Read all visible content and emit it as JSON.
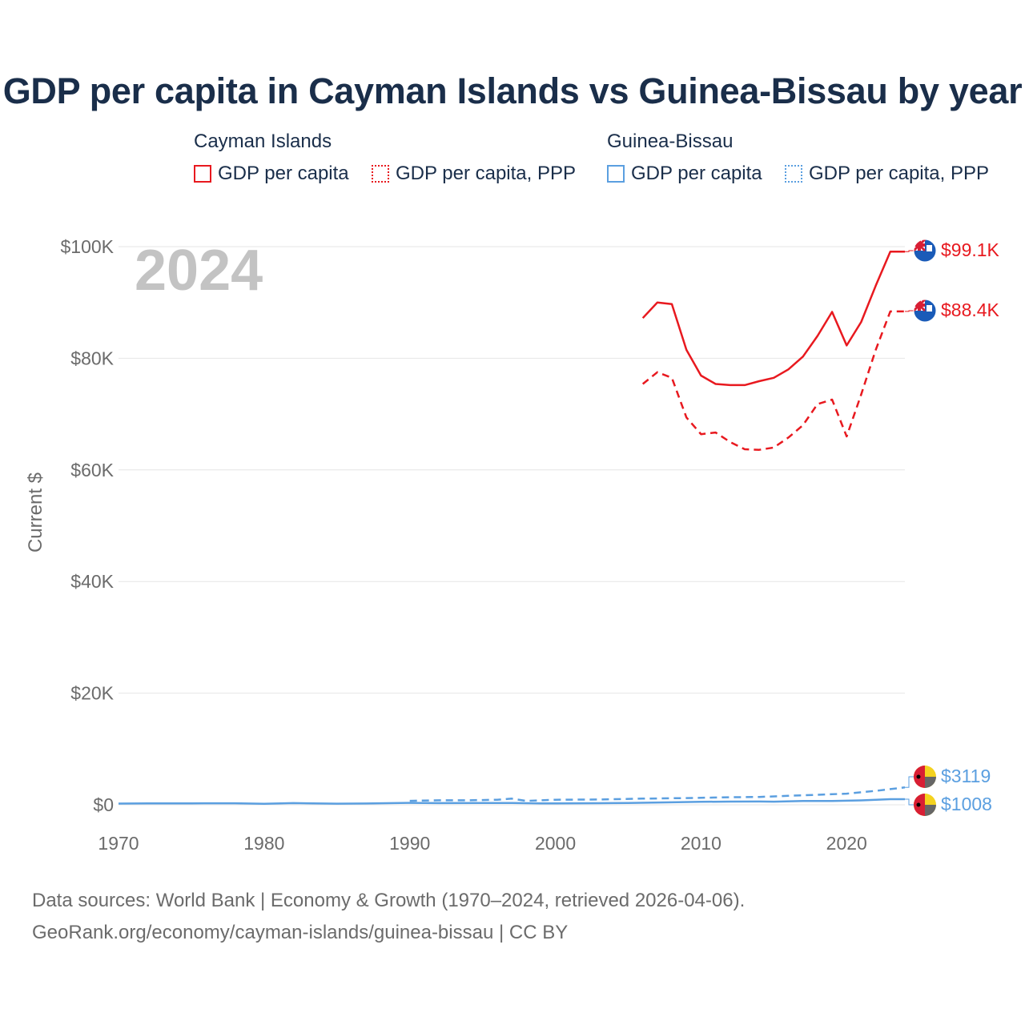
{
  "chart_data": {
    "type": "line",
    "title": "GDP per capita in Cayman Islands vs Guinea-Bissau by year",
    "ylabel": "Current $",
    "xlabel": "",
    "year_watermark": "2024",
    "xlim": [
      1970,
      2024
    ],
    "ylim": [
      0,
      100000
    ],
    "x_ticks": [
      {
        "value": 1970,
        "label": "1970"
      },
      {
        "value": 1980,
        "label": "1980"
      },
      {
        "value": 1990,
        "label": "1990"
      },
      {
        "value": 2000,
        "label": "2000"
      },
      {
        "value": 2010,
        "label": "2010"
      },
      {
        "value": 2020,
        "label": "2020"
      }
    ],
    "y_ticks": [
      {
        "value": 0,
        "label": "$0"
      },
      {
        "value": 20000,
        "label": "$20K"
      },
      {
        "value": 40000,
        "label": "$40K"
      },
      {
        "value": 60000,
        "label": "$60K"
      },
      {
        "value": 80000,
        "label": "$80K"
      },
      {
        "value": 100000,
        "label": "$100K"
      }
    ],
    "legend": {
      "groups": [
        {
          "title": "Cayman Islands",
          "items": [
            {
              "label": "GDP per capita",
              "style": "solid",
              "color": "#e8191f"
            },
            {
              "label": "GDP per capita, PPP",
              "style": "dotted",
              "color": "#e8191f"
            }
          ]
        },
        {
          "title": "Guinea-Bissau",
          "items": [
            {
              "label": "GDP per capita",
              "style": "solid",
              "color": "#5b9fe0"
            },
            {
              "label": "GDP per capita, PPP",
              "style": "dotted",
              "color": "#5b9fe0"
            }
          ]
        }
      ]
    },
    "series": [
      {
        "name": "Cayman Islands GDP per capita",
        "country": "cayman",
        "color": "#e8191f",
        "dash": "solid",
        "end_label": "$99.1K",
        "points": [
          [
            2006,
            87200
          ],
          [
            2007,
            90000
          ],
          [
            2008,
            89700
          ],
          [
            2009,
            81500
          ],
          [
            2010,
            76900
          ],
          [
            2011,
            75400
          ],
          [
            2012,
            75200
          ],
          [
            2013,
            75200
          ],
          [
            2014,
            75900
          ],
          [
            2015,
            76500
          ],
          [
            2016,
            78000
          ],
          [
            2017,
            80300
          ],
          [
            2018,
            84000
          ],
          [
            2019,
            88300
          ],
          [
            2020,
            82300
          ],
          [
            2021,
            86500
          ],
          [
            2022,
            93000
          ],
          [
            2023,
            99100
          ],
          [
            2024,
            99100
          ]
        ]
      },
      {
        "name": "Cayman Islands GDP per capita, PPP",
        "country": "cayman",
        "color": "#e8191f",
        "dash": "dashed",
        "end_label": "$88.4K",
        "points": [
          [
            2006,
            75400
          ],
          [
            2007,
            77500
          ],
          [
            2008,
            76500
          ],
          [
            2009,
            69400
          ],
          [
            2010,
            66400
          ],
          [
            2011,
            66700
          ],
          [
            2012,
            65000
          ],
          [
            2013,
            63700
          ],
          [
            2014,
            63600
          ],
          [
            2015,
            64000
          ],
          [
            2016,
            65800
          ],
          [
            2017,
            68000
          ],
          [
            2018,
            71800
          ],
          [
            2019,
            72600
          ],
          [
            2020,
            66000
          ],
          [
            2021,
            73500
          ],
          [
            2022,
            81500
          ],
          [
            2023,
            88400
          ],
          [
            2024,
            88400
          ]
        ]
      },
      {
        "name": "Guinea-Bissau GDP per capita",
        "country": "guinea-bissau",
        "color": "#5b9fe0",
        "dash": "solid",
        "end_label": "$1008",
        "points": [
          [
            1970,
            210
          ],
          [
            1972,
            240
          ],
          [
            1975,
            260
          ],
          [
            1978,
            270
          ],
          [
            1980,
            170
          ],
          [
            1982,
            300
          ],
          [
            1985,
            200
          ],
          [
            1987,
            230
          ],
          [
            1990,
            350
          ],
          [
            1992,
            300
          ],
          [
            1995,
            330
          ],
          [
            1997,
            330
          ],
          [
            1999,
            250
          ],
          [
            2000,
            250
          ],
          [
            2003,
            280
          ],
          [
            2005,
            330
          ],
          [
            2008,
            450
          ],
          [
            2010,
            530
          ],
          [
            2012,
            580
          ],
          [
            2014,
            590
          ],
          [
            2015,
            560
          ],
          [
            2017,
            670
          ],
          [
            2019,
            680
          ],
          [
            2021,
            790
          ],
          [
            2023,
            1000
          ],
          [
            2024,
            1008
          ]
        ]
      },
      {
        "name": "Guinea-Bissau GDP per capita, PPP",
        "country": "guinea-bissau",
        "color": "#5b9fe0",
        "dash": "dashed",
        "end_label": "$3119",
        "points": [
          [
            1990,
            700
          ],
          [
            1992,
            800
          ],
          [
            1994,
            800
          ],
          [
            1996,
            900
          ],
          [
            1997,
            1100
          ],
          [
            1998,
            700
          ],
          [
            2000,
            900
          ],
          [
            2003,
            950
          ],
          [
            2006,
            1100
          ],
          [
            2009,
            1200
          ],
          [
            2012,
            1350
          ],
          [
            2014,
            1400
          ],
          [
            2016,
            1600
          ],
          [
            2018,
            1800
          ],
          [
            2020,
            2000
          ],
          [
            2022,
            2500
          ],
          [
            2024,
            3119
          ]
        ]
      }
    ]
  },
  "footer": {
    "line1": "Data sources: World Bank | Economy & Growth (1970–2024, retrieved 2026-04-06).",
    "line2": "GeoRank.org/economy/cayman-islands/guinea-bissau | CC BY"
  }
}
